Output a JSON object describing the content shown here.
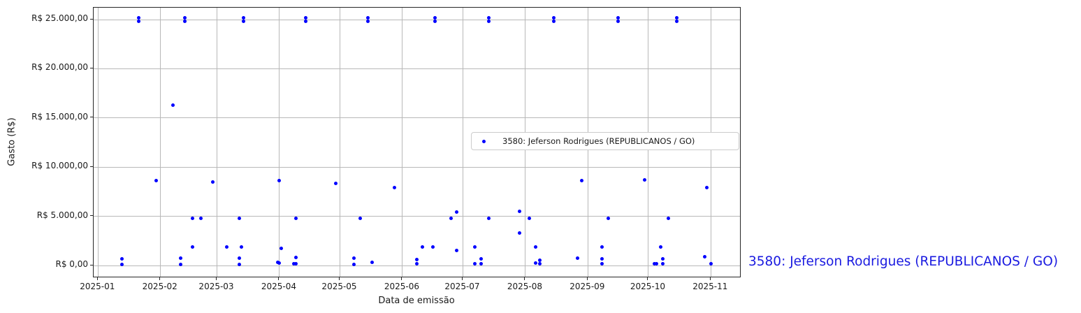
{
  "side_label": {
    "text": "3580: Jeferson Rodrigues (REPUBLICANOS / GO)",
    "color": "#1a1ae0"
  },
  "chart_data": {
    "type": "scatter",
    "title": "",
    "xlabel": "Data de emissão",
    "ylabel": "Gasto (R$)",
    "grid": true,
    "marker_color": "#0000ff",
    "legend": {
      "label": "3580: Jeferson Rodrigues (REPUBLICANOS / GO)",
      "position": "center-right"
    },
    "xlim": [
      "2024-12-30",
      "2025-11-16"
    ],
    "ylim": [
      -1280,
      26210
    ],
    "x_ticks": [
      {
        "date": "2025-01-01",
        "label": "2025-01"
      },
      {
        "date": "2025-02-01",
        "label": "2025-02"
      },
      {
        "date": "2025-03-01",
        "label": "2025-03"
      },
      {
        "date": "2025-04-01",
        "label": "2025-04"
      },
      {
        "date": "2025-05-01",
        "label": "2025-05"
      },
      {
        "date": "2025-06-01",
        "label": "2025-06"
      },
      {
        "date": "2025-07-01",
        "label": "2025-07"
      },
      {
        "date": "2025-08-01",
        "label": "2025-08"
      },
      {
        "date": "2025-09-01",
        "label": "2025-09"
      },
      {
        "date": "2025-10-01",
        "label": "2025-10"
      },
      {
        "date": "2025-11-01",
        "label": "2025-11"
      }
    ],
    "y_ticks": [
      {
        "value": 0,
        "label": "R$ 0,00"
      },
      {
        "value": 5000,
        "label": "R$ 5.000,00"
      },
      {
        "value": 10000,
        "label": "R$ 10.000,00"
      },
      {
        "value": 15000,
        "label": "R$ 15.000,00"
      },
      {
        "value": 20000,
        "label": "R$ 20.000,00"
      },
      {
        "value": 25000,
        "label": "R$ 25.000,00"
      }
    ],
    "series": [
      {
        "name": "3580: Jeferson Rodrigues (REPUBLICANOS / GO)",
        "color": "#0000ff",
        "points": [
          {
            "date": "2025-01-13",
            "value": 640
          },
          {
            "date": "2025-01-13",
            "value": 120
          },
          {
            "date": "2025-01-21",
            "value": 25150
          },
          {
            "date": "2025-01-21",
            "value": 24800
          },
          {
            "date": "2025-01-30",
            "value": 8600
          },
          {
            "date": "2025-02-07",
            "value": 16300
          },
          {
            "date": "2025-02-11",
            "value": 760
          },
          {
            "date": "2025-02-11",
            "value": 120
          },
          {
            "date": "2025-02-13",
            "value": 25150
          },
          {
            "date": "2025-02-13",
            "value": 24800
          },
          {
            "date": "2025-02-17",
            "value": 4800
          },
          {
            "date": "2025-02-17",
            "value": 1850
          },
          {
            "date": "2025-02-21",
            "value": 4800
          },
          {
            "date": "2025-02-27",
            "value": 8500
          },
          {
            "date": "2025-03-06",
            "value": 1850
          },
          {
            "date": "2025-03-12",
            "value": 4800
          },
          {
            "date": "2025-03-12",
            "value": 760
          },
          {
            "date": "2025-03-12",
            "value": 120
          },
          {
            "date": "2025-03-13",
            "value": 1850
          },
          {
            "date": "2025-03-14",
            "value": 25150
          },
          {
            "date": "2025-03-14",
            "value": 24800
          },
          {
            "date": "2025-03-31",
            "value": 310
          },
          {
            "date": "2025-04-01",
            "value": 8600
          },
          {
            "date": "2025-04-01",
            "value": 280
          },
          {
            "date": "2025-04-02",
            "value": 1750
          },
          {
            "date": "2025-04-08",
            "value": 190
          },
          {
            "date": "2025-04-09",
            "value": 800
          },
          {
            "date": "2025-04-09",
            "value": 190
          },
          {
            "date": "2025-04-09",
            "value": 4800
          },
          {
            "date": "2025-04-14",
            "value": 25150
          },
          {
            "date": "2025-04-14",
            "value": 24800
          },
          {
            "date": "2025-04-29",
            "value": 8350
          },
          {
            "date": "2025-05-08",
            "value": 760
          },
          {
            "date": "2025-05-08",
            "value": 140
          },
          {
            "date": "2025-05-11",
            "value": 4800
          },
          {
            "date": "2025-05-15",
            "value": 25150
          },
          {
            "date": "2025-05-15",
            "value": 24800
          },
          {
            "date": "2025-05-17",
            "value": 355
          },
          {
            "date": "2025-05-28",
            "value": 7900
          },
          {
            "date": "2025-06-08",
            "value": 590
          },
          {
            "date": "2025-06-08",
            "value": 210
          },
          {
            "date": "2025-06-11",
            "value": 1850
          },
          {
            "date": "2025-06-16",
            "value": 1850
          },
          {
            "date": "2025-06-17",
            "value": 25150
          },
          {
            "date": "2025-06-17",
            "value": 24800
          },
          {
            "date": "2025-06-25",
            "value": 4800
          },
          {
            "date": "2025-06-28",
            "value": 5400
          },
          {
            "date": "2025-06-28",
            "value": 1550
          },
          {
            "date": "2025-07-07",
            "value": 1850
          },
          {
            "date": "2025-07-07",
            "value": 210
          },
          {
            "date": "2025-07-10",
            "value": 640
          },
          {
            "date": "2025-07-10",
            "value": 210
          },
          {
            "date": "2025-07-14",
            "value": 25150
          },
          {
            "date": "2025-07-14",
            "value": 24800
          },
          {
            "date": "2025-07-14",
            "value": 4800
          },
          {
            "date": "2025-07-29",
            "value": 5500
          },
          {
            "date": "2025-07-29",
            "value": 3300
          },
          {
            "date": "2025-08-03",
            "value": 4800
          },
          {
            "date": "2025-08-06",
            "value": 1850
          },
          {
            "date": "2025-08-06",
            "value": 230
          },
          {
            "date": "2025-08-08",
            "value": 520
          },
          {
            "date": "2025-08-08",
            "value": 210
          },
          {
            "date": "2025-08-15",
            "value": 25150
          },
          {
            "date": "2025-08-15",
            "value": 24800
          },
          {
            "date": "2025-08-27",
            "value": 760
          },
          {
            "date": "2025-08-29",
            "value": 8600
          },
          {
            "date": "2025-09-08",
            "value": 1850
          },
          {
            "date": "2025-09-08",
            "value": 690
          },
          {
            "date": "2025-09-08",
            "value": 210
          },
          {
            "date": "2025-09-11",
            "value": 4800
          },
          {
            "date": "2025-09-16",
            "value": 25150
          },
          {
            "date": "2025-09-16",
            "value": 24800
          },
          {
            "date": "2025-09-29",
            "value": 8700
          },
          {
            "date": "2025-10-04",
            "value": 210
          },
          {
            "date": "2025-10-05",
            "value": 210
          },
          {
            "date": "2025-10-07",
            "value": 1850
          },
          {
            "date": "2025-10-08",
            "value": 690
          },
          {
            "date": "2025-10-08",
            "value": 210
          },
          {
            "date": "2025-10-11",
            "value": 4800
          },
          {
            "date": "2025-10-15",
            "value": 25150
          },
          {
            "date": "2025-10-15",
            "value": 24800
          },
          {
            "date": "2025-10-29",
            "value": 920
          },
          {
            "date": "2025-10-30",
            "value": 7900
          },
          {
            "date": "2025-11-01",
            "value": 190
          }
        ]
      }
    ]
  }
}
